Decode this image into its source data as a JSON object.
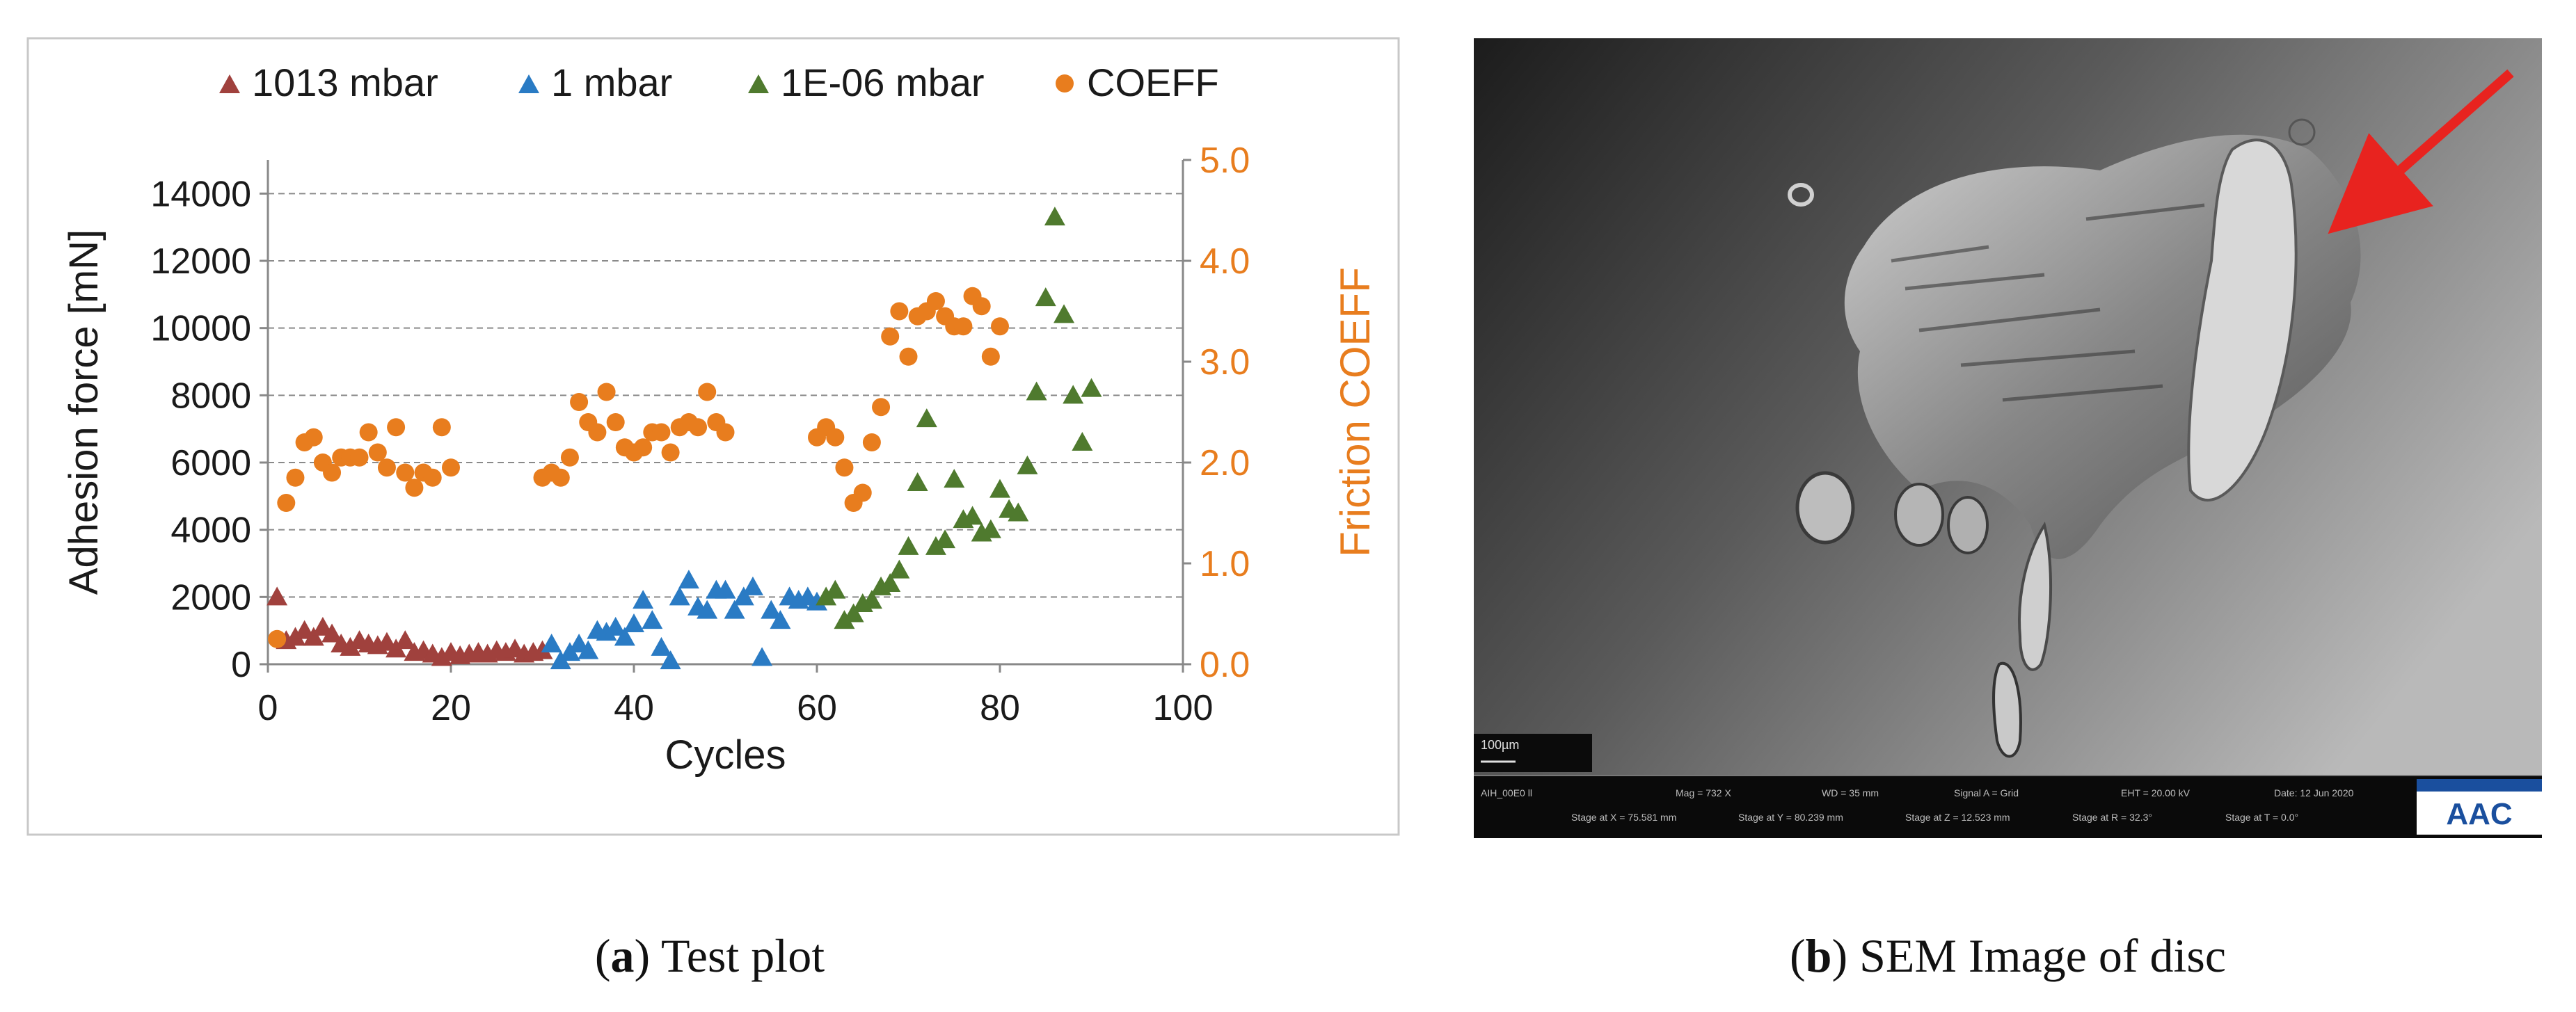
{
  "chart_data": {
    "type": "scatter",
    "xlabel": "Cycles",
    "ylabel": "Adhesion force [mN]",
    "y2label": "Friction COEFF",
    "xlim": [
      0,
      100
    ],
    "ylim": [
      0,
      15000
    ],
    "y2lim": [
      0,
      5
    ],
    "xticks": [
      "0",
      "20",
      "40",
      "60",
      "80",
      "100"
    ],
    "yticks": [
      "0",
      "2000",
      "4000",
      "6000",
      "8000",
      "10000",
      "12000",
      "14000"
    ],
    "y2ticks": [
      "0.0",
      "1.0",
      "2.0",
      "3.0",
      "4.0",
      "5.0"
    ],
    "legend_position": "top",
    "colors": {
      "red": "#a0413d",
      "blue": "#2a7bc4",
      "green": "#4f7a2e",
      "orange": "#e87d1e",
      "axis2": "#e87d1e"
    },
    "series": [
      {
        "name": "1013 mbar",
        "marker": "triangle",
        "color": "#a0413d",
        "axis": "left",
        "x": [
          1,
          2,
          3,
          4,
          5,
          6,
          7,
          8,
          9,
          10,
          11,
          12,
          13,
          14,
          15,
          16,
          17,
          18,
          19,
          20,
          21,
          22,
          23,
          24,
          25,
          26,
          27,
          28,
          29,
          30
        ],
        "y": [
          2000,
          700,
          800,
          1000,
          800,
          1100,
          900,
          600,
          500,
          700,
          600,
          550,
          650,
          450,
          700,
          350,
          400,
          300,
          200,
          350,
          250,
          300,
          350,
          300,
          400,
          350,
          450,
          300,
          350,
          400
        ]
      },
      {
        "name": "1 mbar",
        "marker": "triangle",
        "color": "#2a7bc4",
        "axis": "left",
        "x": [
          31,
          32,
          33,
          34,
          35,
          36,
          37,
          38,
          39,
          40,
          41,
          42,
          43,
          44,
          45,
          46,
          47,
          48,
          49,
          50,
          51,
          52,
          53,
          54,
          55,
          56,
          57,
          58,
          59,
          60
        ],
        "y": [
          600,
          100,
          350,
          600,
          400,
          1000,
          950,
          1100,
          800,
          1200,
          1900,
          1300,
          500,
          100,
          2000,
          2500,
          1700,
          1600,
          2200,
          2200,
          1600,
          2000,
          2300,
          200,
          1600,
          1300,
          2000,
          1900,
          2000,
          1850
        ]
      },
      {
        "name": "1E-06 mbar",
        "marker": "triangle",
        "color": "#4f7a2e",
        "axis": "left",
        "x": [
          61,
          62,
          63,
          64,
          65,
          66,
          67,
          68,
          69,
          70,
          71,
          72,
          73,
          74,
          75,
          76,
          77,
          78,
          79,
          80,
          81,
          82,
          83,
          84,
          85,
          86,
          87,
          88,
          89,
          90
        ],
        "y": [
          2000,
          2200,
          1300,
          1500,
          1800,
          1900,
          2300,
          2400,
          2800,
          3500,
          5400,
          7300,
          3500,
          3700,
          5500,
          4300,
          4400,
          3900,
          4000,
          5200,
          4600,
          4500,
          5900,
          8100,
          10900,
          13300,
          10400,
          8000,
          6600,
          8200
        ]
      },
      {
        "name": "COEFF",
        "marker": "circle",
        "color": "#e87d1e",
        "axis": "right",
        "x": [
          1,
          2,
          3,
          4,
          5,
          6,
          7,
          8,
          9,
          10,
          11,
          12,
          13,
          14,
          15,
          16,
          17,
          18,
          19,
          20,
          30,
          31,
          32,
          33,
          34,
          35,
          36,
          37,
          38,
          39,
          40,
          41,
          42,
          43,
          44,
          45,
          46,
          47,
          48,
          49,
          50,
          60,
          61,
          62,
          63,
          64,
          65,
          66,
          67,
          68,
          69,
          70,
          71,
          72,
          73,
          74,
          75,
          76,
          77,
          78,
          79,
          80
        ],
        "y": [
          0.25,
          1.6,
          1.85,
          2.2,
          2.25,
          2.0,
          1.9,
          2.05,
          2.05,
          2.05,
          2.3,
          2.1,
          1.95,
          2.35,
          1.9,
          1.75,
          1.9,
          1.85,
          2.35,
          1.95,
          1.85,
          1.9,
          1.85,
          2.05,
          2.6,
          2.4,
          2.3,
          2.7,
          2.4,
          2.15,
          2.1,
          2.15,
          2.3,
          2.3,
          2.1,
          2.35,
          2.4,
          2.35,
          2.7,
          2.4,
          2.3,
          2.25,
          2.35,
          2.25,
          1.95,
          1.6,
          1.7,
          2.2,
          2.55,
          3.25,
          3.5,
          3.05,
          3.45,
          3.5,
          3.6,
          3.45,
          3.35,
          3.35,
          3.65,
          3.55,
          3.05,
          3.35
        ]
      }
    ]
  },
  "sem_image": {
    "scale_label": "100µm",
    "footer_row1": [
      "AIH_00E0 ll",
      "Mag = 732 X",
      "WD = 35 mm",
      "Signal A = Grid",
      "EHT = 20.00 kV",
      "Date: 12 Jun 2020"
    ],
    "footer_row2": [
      "Stage at X = 75.581 mm",
      "Stage at Y = 80.239 mm",
      "Stage at Z = 12.523 mm",
      "Stage at R = 32.3°",
      "Stage at T = 0.0°"
    ],
    "logo": "AAC"
  },
  "captions": {
    "a": {
      "letter": "a",
      "text": " Test plot"
    },
    "b": {
      "letter": "b",
      "text": " SEM Image of disc"
    }
  }
}
